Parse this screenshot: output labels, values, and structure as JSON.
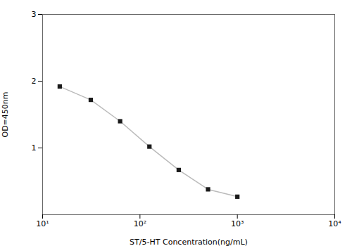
{
  "chart_data": {
    "type": "line",
    "xlabel": "ST/5-HT Concentration(ng/mL)",
    "ylabel": "OD=450nm",
    "x": [
      15,
      31.25,
      62.5,
      125,
      250,
      500,
      1000
    ],
    "series": [
      {
        "type": "line",
        "color": "#bbbbbb",
        "values": [
          1.92,
          1.72,
          1.4,
          1.02,
          0.67,
          0.38,
          0.27
        ]
      },
      {
        "type": "scatter",
        "color": "#1a1a1a",
        "marker": "square",
        "values": [
          1.92,
          1.72,
          1.4,
          1.02,
          0.67,
          0.38,
          0.27
        ]
      }
    ],
    "log": "x",
    "xlim": [
      10,
      10000
    ],
    "xticks": [
      {
        "value": 10,
        "label": "10¹"
      },
      {
        "value": 100,
        "label": "10²"
      },
      {
        "value": 1000,
        "label": "10³"
      },
      {
        "value": 10000,
        "label": "10⁴"
      }
    ],
    "ylim": [
      0,
      3
    ],
    "yticks": [
      1,
      2,
      3
    ],
    "grid": false
  }
}
